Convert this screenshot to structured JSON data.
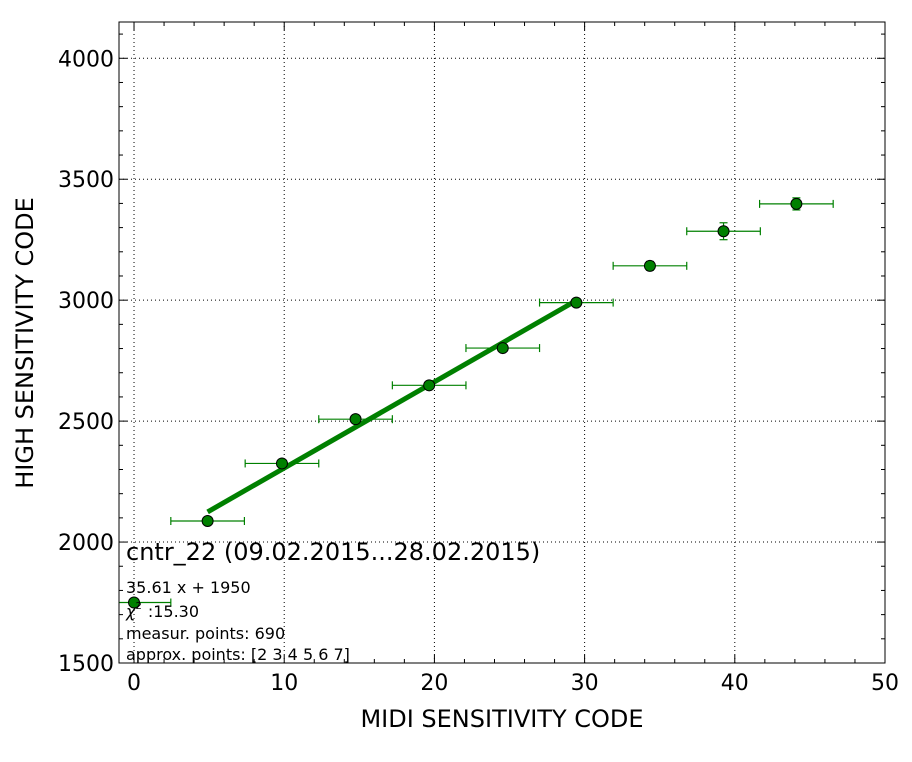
{
  "chart_data": {
    "type": "scatter",
    "title": "",
    "xlabel": "MIDI SENSITIVITY CODE",
    "ylabel": "HIGH SENSITIVITY CODE",
    "xlim": [
      -1,
      50
    ],
    "ylim": [
      1500,
      4150
    ],
    "xticks": [
      0,
      10,
      20,
      30,
      40,
      50
    ],
    "yticks": [
      1500,
      2000,
      2500,
      3000,
      3500,
      4000
    ],
    "grid": true,
    "colors": {
      "series": "#008000",
      "marker": "#008000",
      "marker_edge": "#000000"
    },
    "series": [
      {
        "type": "errorbar",
        "x": [
          0,
          4.9,
          9.85,
          14.75,
          19.65,
          24.55,
          29.45,
          34.35,
          39.25,
          44.1
        ],
        "y": [
          1750,
          2087,
          2325,
          2508,
          2648,
          2802,
          2990,
          3142,
          3285,
          3398
        ],
        "xerr": [
          2.45,
          2.45,
          2.45,
          2.45,
          2.45,
          2.45,
          2.45,
          2.45,
          2.45,
          2.45
        ],
        "yerr": [
          8,
          8,
          10,
          10,
          8,
          10,
          10,
          18,
          35,
          25
        ]
      },
      {
        "type": "line",
        "x": [
          4.9,
          29.45
        ],
        "y": [
          2124.5,
          2998.7
        ]
      }
    ]
  },
  "annotations": {
    "title": "cntr_22 (09.02.2015...28.02.2015)",
    "fit": "35.61 x + 1950",
    "chi_symbol": "χ",
    "chi_sup": "2",
    "chi_value": ":15.30",
    "measur": "measur. points: 690",
    "approx": "approx. points: [2 3 4 5 6 7]"
  }
}
